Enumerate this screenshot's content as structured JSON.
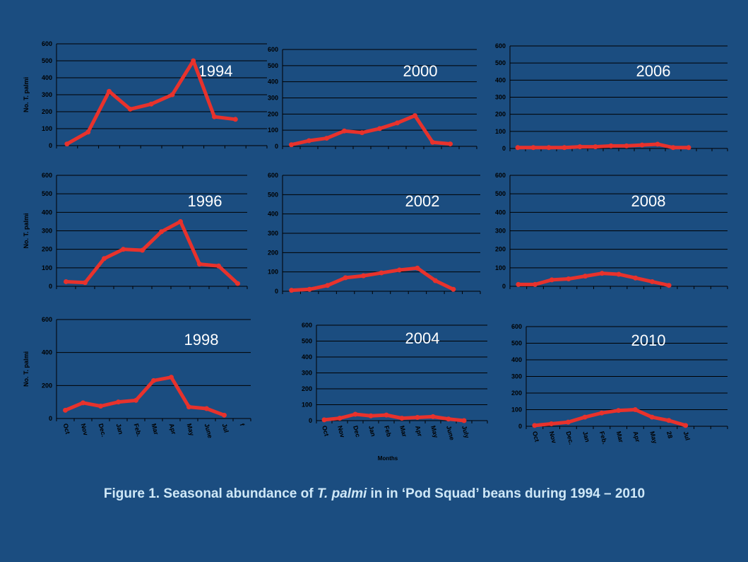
{
  "caption": {
    "parts": [
      "Figure 1. Seasonal abundance of ",
      "T. palmi",
      " in in ‘Pod Squad’ beans during 1994 – 2010"
    ]
  },
  "chart_data": [
    {
      "type": "line",
      "annotation": "1994",
      "y_label": "No. T. palmi",
      "color": "#e8322c",
      "grid": true,
      "categories": [
        null,
        null,
        null,
        null,
        null,
        null,
        null,
        null,
        null,
        null
      ],
      "values": [
        10,
        80,
        320,
        215,
        245,
        300,
        500,
        170,
        155,
        null
      ],
      "ylim": [
        0,
        600
      ],
      "yticks": [
        0,
        100,
        200,
        300,
        400,
        500,
        600
      ]
    },
    {
      "type": "line",
      "annotation": "2000",
      "color": "#e8322c",
      "grid": true,
      "categories": [
        null,
        null,
        null,
        null,
        null,
        null,
        null,
        null,
        null,
        null,
        null
      ],
      "values": [
        10,
        35,
        50,
        95,
        85,
        110,
        145,
        190,
        25,
        15,
        null
      ],
      "ylim": [
        0,
        600
      ],
      "yticks": [
        0,
        100,
        200,
        300,
        400,
        500,
        600
      ]
    },
    {
      "type": "line",
      "annotation": "2006",
      "color": "#e8322c",
      "grid": true,
      "categories": [
        null,
        null,
        null,
        null,
        null,
        null,
        null,
        null,
        null,
        null,
        null,
        null,
        null,
        null
      ],
      "values": [
        5,
        5,
        5,
        5,
        10,
        10,
        15,
        15,
        20,
        25,
        5,
        5,
        null,
        null
      ],
      "ylim": [
        0,
        600
      ],
      "yticks": [
        0,
        100,
        200,
        300,
        400,
        500,
        600
      ]
    },
    {
      "type": "line",
      "annotation": "1996",
      "y_label": "No. T. palmi",
      "color": "#e8322c",
      "grid": true,
      "categories": [
        null,
        null,
        null,
        null,
        null,
        null,
        null,
        null,
        null,
        null
      ],
      "values": [
        25,
        20,
        150,
        200,
        195,
        295,
        350,
        120,
        110,
        15
      ],
      "ylim": [
        0,
        600
      ],
      "yticks": [
        0,
        100,
        200,
        300,
        400,
        500,
        600
      ]
    },
    {
      "type": "line",
      "annotation": "2002",
      "color": "#e8322c",
      "grid": true,
      "categories": [
        null,
        null,
        null,
        null,
        null,
        null,
        null,
        null,
        null,
        null,
        null
      ],
      "values": [
        5,
        10,
        30,
        70,
        80,
        95,
        110,
        120,
        55,
        10,
        null
      ],
      "ylim": [
        0,
        600
      ],
      "yticks": [
        0,
        100,
        200,
        300,
        400,
        500,
        600
      ]
    },
    {
      "type": "line",
      "annotation": "2008",
      "color": "#e8322c",
      "grid": true,
      "categories": [
        null,
        null,
        null,
        null,
        null,
        null,
        null,
        null,
        null,
        null,
        null,
        null,
        null
      ],
      "values": [
        10,
        10,
        35,
        40,
        55,
        70,
        65,
        45,
        25,
        5,
        null,
        null,
        null
      ],
      "ylim": [
        0,
        600
      ],
      "yticks": [
        0,
        100,
        200,
        300,
        400,
        500,
        600
      ]
    },
    {
      "type": "line",
      "annotation": "1998",
      "y_label": "No. T. palmi",
      "color": "#e8322c",
      "grid": true,
      "categories": [
        "Oct",
        "Nov",
        "Dec.",
        "Jan",
        "Feb.",
        "Mar",
        "Apr",
        "May",
        "June",
        "Jul",
        "f"
      ],
      "values": [
        50,
        95,
        75,
        100,
        110,
        230,
        250,
        70,
        60,
        20,
        null
      ],
      "ylim": [
        0,
        600
      ],
      "yticks": [
        0,
        200,
        400,
        600
      ]
    },
    {
      "type": "line",
      "annotation": "2004",
      "x_label": "Months",
      "color": "#e8322c",
      "grid": true,
      "categories": [
        "Oct",
        "Nov",
        "Dec",
        "Jan",
        "Feb",
        "Mar",
        "Apr",
        "May",
        "June",
        "July",
        null
      ],
      "values": [
        5,
        15,
        40,
        30,
        35,
        15,
        20,
        25,
        10,
        0,
        null
      ],
      "ylim": [
        0,
        600
      ],
      "yticks": [
        0,
        100,
        200,
        300,
        400,
        500,
        600
      ]
    },
    {
      "type": "line",
      "annotation": "2010",
      "color": "#e8322c",
      "grid": true,
      "categories": [
        "Oct",
        "Nov",
        "Dec.",
        "Jan",
        "Feb.",
        "Mar",
        "Apr",
        "May",
        "28",
        "Jul",
        null,
        null
      ],
      "values": [
        5,
        15,
        25,
        55,
        80,
        95,
        100,
        55,
        35,
        5,
        null,
        null
      ],
      "ylim": [
        0,
        600
      ],
      "yticks": [
        0,
        100,
        200,
        300,
        400,
        500,
        600
      ]
    }
  ]
}
